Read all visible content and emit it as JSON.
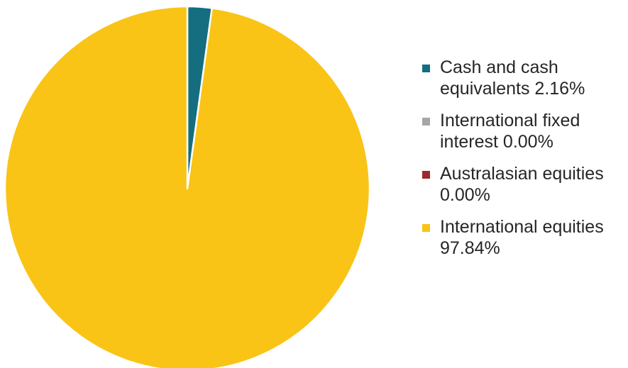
{
  "chart_data": {
    "type": "pie",
    "categories": [
      "Cash and cash equivalents 2.16%",
      "International fixed interest 0.00%",
      "Australasian equities 0.00%",
      "International equities 97.84%"
    ],
    "values": [
      2.16,
      0.0,
      0.0,
      97.84
    ],
    "colors": [
      "#146e80",
      "#a6a6a6",
      "#9e2a2b",
      "#f9c416"
    ],
    "title": "",
    "legend": "right",
    "start_angle_deg": 0,
    "direction": "clockwise"
  }
}
